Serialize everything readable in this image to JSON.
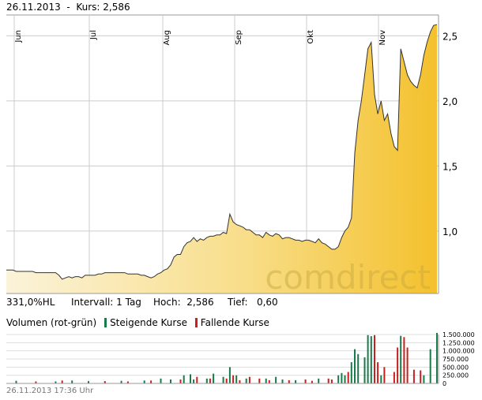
{
  "header": {
    "date": "26.11.2013",
    "separator": "-",
    "price_label": "Kurs: 2,586"
  },
  "stats": {
    "change": "331,0%HL",
    "interval": "Intervall: 1 Tag",
    "high": "Hoch:  2,586",
    "low": "Tief:   0,60"
  },
  "volume_legend": {
    "title": "Volumen (rot-grün)",
    "rising_label": "Steigende Kurse",
    "falling_label": "Fallende Kurse"
  },
  "watermark": "comdirect",
  "footer": {
    "timestamp": "26.11.2013 17:36 Uhr"
  },
  "colors": {
    "area_fill": "#f6c83b",
    "line": "#333333",
    "rising": "#1a7a4a",
    "falling": "#c8201e",
    "grid": "#cccccc"
  },
  "chart_data": [
    {
      "type": "area",
      "x_tick_labels": [
        "Jun",
        "Jul",
        "Aug",
        "Sep",
        "Okt",
        "Nov"
      ],
      "y_tick_labels": [
        "1,0",
        "1,5",
        "2,0",
        "2,5"
      ],
      "yticks": [
        1.0,
        1.5,
        2.0,
        2.5
      ],
      "ylim": [
        0.52,
        2.66
      ],
      "grid": true,
      "series": [
        {
          "points": [
            [
              0,
              0.7
            ],
            [
              1,
              0.7
            ],
            [
              2,
              0.7
            ],
            [
              3,
              0.69
            ],
            [
              4,
              0.69
            ],
            [
              5,
              0.69
            ],
            [
              6,
              0.69
            ],
            [
              7,
              0.69
            ],
            [
              8,
              0.69
            ],
            [
              9,
              0.68
            ],
            [
              10,
              0.68
            ],
            [
              11,
              0.68
            ],
            [
              12,
              0.68
            ],
            [
              13,
              0.68
            ],
            [
              14,
              0.68
            ],
            [
              15,
              0.68
            ],
            [
              16,
              0.66
            ],
            [
              17,
              0.63
            ],
            [
              18,
              0.64
            ],
            [
              19,
              0.65
            ],
            [
              20,
              0.64
            ],
            [
              21,
              0.65
            ],
            [
              22,
              0.65
            ],
            [
              23,
              0.64
            ],
            [
              24,
              0.66
            ],
            [
              25,
              0.66
            ],
            [
              26,
              0.66
            ],
            [
              27,
              0.66
            ],
            [
              28,
              0.67
            ],
            [
              29,
              0.67
            ],
            [
              30,
              0.68
            ],
            [
              31,
              0.68
            ],
            [
              32,
              0.68
            ],
            [
              33,
              0.68
            ],
            [
              34,
              0.68
            ],
            [
              35,
              0.68
            ],
            [
              36,
              0.68
            ],
            [
              37,
              0.67
            ],
            [
              38,
              0.67
            ],
            [
              39,
              0.67
            ],
            [
              40,
              0.67
            ],
            [
              41,
              0.66
            ],
            [
              42,
              0.66
            ],
            [
              43,
              0.65
            ],
            [
              44,
              0.64
            ],
            [
              45,
              0.65
            ],
            [
              46,
              0.67
            ],
            [
              47,
              0.68
            ],
            [
              48,
              0.7
            ],
            [
              49,
              0.71
            ],
            [
              50,
              0.74
            ],
            [
              51,
              0.8
            ],
            [
              52,
              0.82
            ],
            [
              53,
              0.82
            ],
            [
              54,
              0.88
            ],
            [
              55,
              0.91
            ],
            [
              56,
              0.92
            ],
            [
              57,
              0.95
            ],
            [
              58,
              0.92
            ],
            [
              59,
              0.94
            ],
            [
              60,
              0.93
            ],
            [
              61,
              0.95
            ],
            [
              62,
              0.96
            ],
            [
              63,
              0.96
            ],
            [
              64,
              0.97
            ],
            [
              65,
              0.97
            ],
            [
              66,
              0.99
            ],
            [
              67,
              0.98
            ],
            [
              68,
              1.13
            ],
            [
              69,
              1.07
            ],
            [
              70,
              1.05
            ],
            [
              71,
              1.04
            ],
            [
              72,
              1.03
            ],
            [
              73,
              1.01
            ],
            [
              74,
              1.01
            ],
            [
              75,
              0.99
            ],
            [
              76,
              0.97
            ],
            [
              77,
              0.97
            ],
            [
              78,
              0.95
            ],
            [
              79,
              0.99
            ],
            [
              80,
              0.97
            ],
            [
              81,
              0.96
            ],
            [
              82,
              0.98
            ],
            [
              83,
              0.97
            ],
            [
              84,
              0.94
            ],
            [
              85,
              0.95
            ],
            [
              86,
              0.95
            ],
            [
              87,
              0.94
            ],
            [
              88,
              0.93
            ],
            [
              89,
              0.93
            ],
            [
              90,
              0.92
            ],
            [
              91,
              0.93
            ],
            [
              92,
              0.93
            ],
            [
              93,
              0.92
            ],
            [
              94,
              0.91
            ],
            [
              95,
              0.94
            ],
            [
              96,
              0.91
            ],
            [
              97,
              0.9
            ],
            [
              98,
              0.88
            ],
            [
              99,
              0.86
            ],
            [
              100,
              0.86
            ],
            [
              101,
              0.88
            ],
            [
              102,
              0.95
            ],
            [
              103,
              1.0
            ],
            [
              104,
              1.03
            ],
            [
              105,
              1.1
            ],
            [
              106,
              1.6
            ],
            [
              107,
              1.85
            ],
            [
              108,
              2.0
            ],
            [
              109,
              2.2
            ],
            [
              110,
              2.4
            ],
            [
              111,
              2.45
            ],
            [
              112,
              2.05
            ],
            [
              113,
              1.9
            ],
            [
              114,
              2.0
            ],
            [
              115,
              1.85
            ],
            [
              116,
              1.9
            ],
            [
              117,
              1.75
            ],
            [
              118,
              1.65
            ],
            [
              119,
              1.62
            ],
            [
              120,
              2.4
            ],
            [
              121,
              2.3
            ],
            [
              122,
              2.2
            ],
            [
              123,
              2.15
            ],
            [
              124,
              2.12
            ],
            [
              125,
              2.1
            ],
            [
              126,
              2.2
            ],
            [
              127,
              2.35
            ],
            [
              128,
              2.45
            ],
            [
              129,
              2.53
            ],
            [
              130,
              2.58
            ],
            [
              131,
              2.586
            ]
          ]
        }
      ]
    },
    {
      "type": "bar",
      "y_tick_labels": [
        "1.500.000",
        "1.250.000",
        "1.000.000",
        "750.000",
        "500.000",
        "250.000",
        "0"
      ],
      "yticks": [
        1500000,
        1250000,
        1000000,
        750000,
        500000,
        250000,
        0
      ],
      "ylim": [
        0,
        1500000
      ],
      "series": [
        {
          "name": "Steigende Kurse",
          "points": [
            [
              3,
              80000
            ],
            [
              15,
              60000
            ],
            [
              20,
              90000
            ],
            [
              25,
              70000
            ],
            [
              35,
              80000
            ],
            [
              42,
              90000
            ],
            [
              47,
              150000
            ],
            [
              50,
              120000
            ],
            [
              54,
              250000
            ],
            [
              56,
              280000
            ],
            [
              57,
              120000
            ],
            [
              61,
              150000
            ],
            [
              63,
              300000
            ],
            [
              66,
              200000
            ],
            [
              68,
              500000
            ],
            [
              70,
              250000
            ],
            [
              73,
              150000
            ],
            [
              79,
              150000
            ],
            [
              82,
              200000
            ],
            [
              84,
              120000
            ],
            [
              88,
              100000
            ],
            [
              95,
              150000
            ],
            [
              101,
              250000
            ],
            [
              102,
              320000
            ],
            [
              103,
              250000
            ],
            [
              105,
              650000
            ],
            [
              106,
              1050000
            ],
            [
              107,
              900000
            ],
            [
              109,
              800000
            ],
            [
              110,
              1480000
            ],
            [
              111,
              1450000
            ],
            [
              114,
              250000
            ],
            [
              120,
              1460000
            ],
            [
              127,
              250000
            ],
            [
              129,
              1050000
            ],
            [
              131,
              1550000
            ]
          ]
        },
        {
          "name": "Fallende Kurse",
          "points": [
            [
              9,
              60000
            ],
            [
              17,
              90000
            ],
            [
              30,
              70000
            ],
            [
              37,
              60000
            ],
            [
              44,
              90000
            ],
            [
              53,
              120000
            ],
            [
              58,
              200000
            ],
            [
              62,
              150000
            ],
            [
              67,
              150000
            ],
            [
              69,
              250000
            ],
            [
              71,
              100000
            ],
            [
              74,
              200000
            ],
            [
              77,
              150000
            ],
            [
              80,
              100000
            ],
            [
              86,
              100000
            ],
            [
              91,
              120000
            ],
            [
              93,
              80000
            ],
            [
              98,
              150000
            ],
            [
              99,
              120000
            ],
            [
              104,
              350000
            ],
            [
              112,
              1480000
            ],
            [
              113,
              650000
            ],
            [
              115,
              500000
            ],
            [
              118,
              350000
            ],
            [
              119,
              1100000
            ],
            [
              121,
              1420000
            ],
            [
              122,
              1100000
            ],
            [
              124,
              420000
            ],
            [
              126,
              400000
            ]
          ]
        }
      ]
    }
  ]
}
